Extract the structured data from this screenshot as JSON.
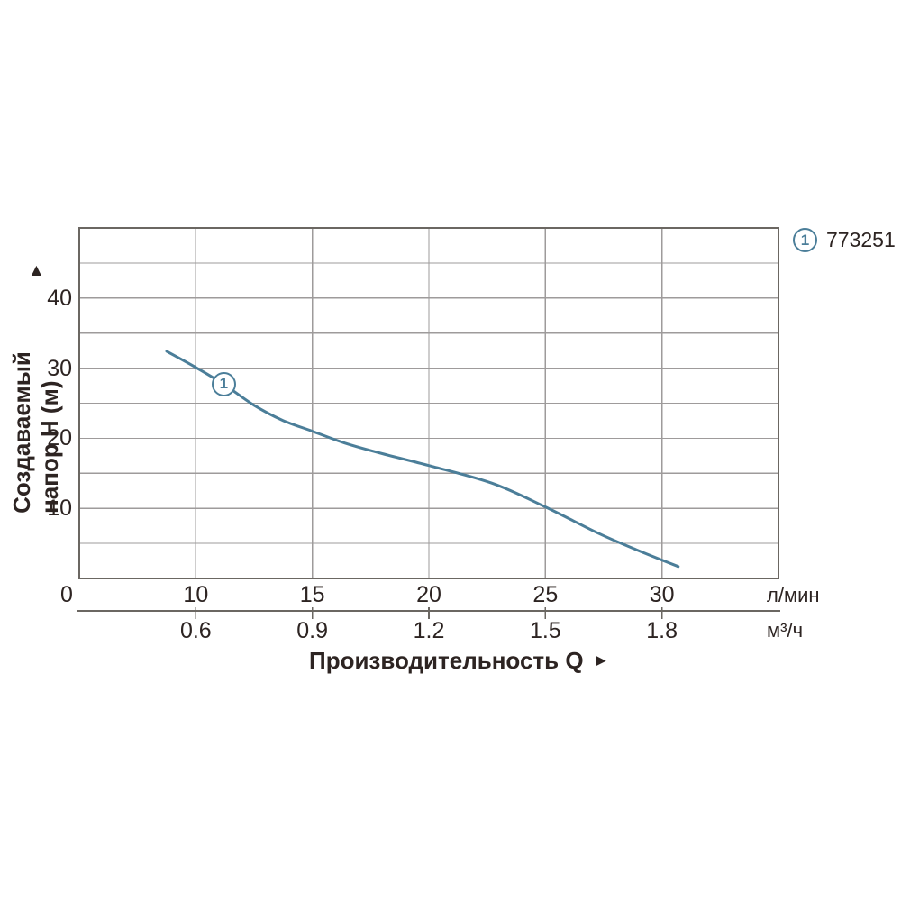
{
  "chart_data": {
    "type": "line",
    "title": "",
    "x_axis": {
      "label": "Производительность Q",
      "arrow": "►",
      "origin_label": "0",
      "unit_primary": "л/мин",
      "unit_secondary": "м³/ч",
      "ticks_primary": [
        "10",
        "15",
        "20",
        "25",
        "30"
      ],
      "ticks_secondary": [
        "0.6",
        "0.9",
        "1.2",
        "1.5",
        "1.8"
      ],
      "gridline_values": [
        10,
        15,
        20,
        25,
        30
      ],
      "scale_note": "non-linear: the 0-10 л/мин span occupies one gridline interval, then 5 л/мин per interval"
    },
    "y_axis": {
      "label": "Создаваемый напор Н (м)",
      "arrow": "▲",
      "ticks": [
        "10",
        "20",
        "30",
        "40"
      ],
      "tick_values": [
        10,
        20,
        30,
        40
      ],
      "range": [
        0,
        50
      ],
      "gridline_step": 5
    },
    "series": [
      {
        "name": "773251",
        "marker_label": "1",
        "color": "#4b7e99",
        "marker_at": [
          11.2,
          27.7
        ],
        "points": [
          [
            7.5,
            32.4
          ],
          [
            10,
            30.1
          ],
          [
            11.2,
            27.7
          ],
          [
            12.5,
            24.7
          ],
          [
            13.7,
            22.6
          ],
          [
            15,
            21.0
          ],
          [
            16.4,
            19.3
          ],
          [
            18,
            17.8
          ],
          [
            20,
            16.1
          ],
          [
            22.7,
            13.6
          ],
          [
            25,
            10.2
          ],
          [
            27.3,
            6.4
          ],
          [
            28.9,
            4.1
          ],
          [
            30.7,
            1.7
          ]
        ]
      }
    ],
    "legend": {
      "position": "top-right",
      "marker_label": "1",
      "name": "773251"
    },
    "colors": {
      "accent": "#4b7e99",
      "grid": "#9e9b9b",
      "border": "#6b6762",
      "text": "#2d2422",
      "background": "#ffffff"
    },
    "grid": true
  }
}
